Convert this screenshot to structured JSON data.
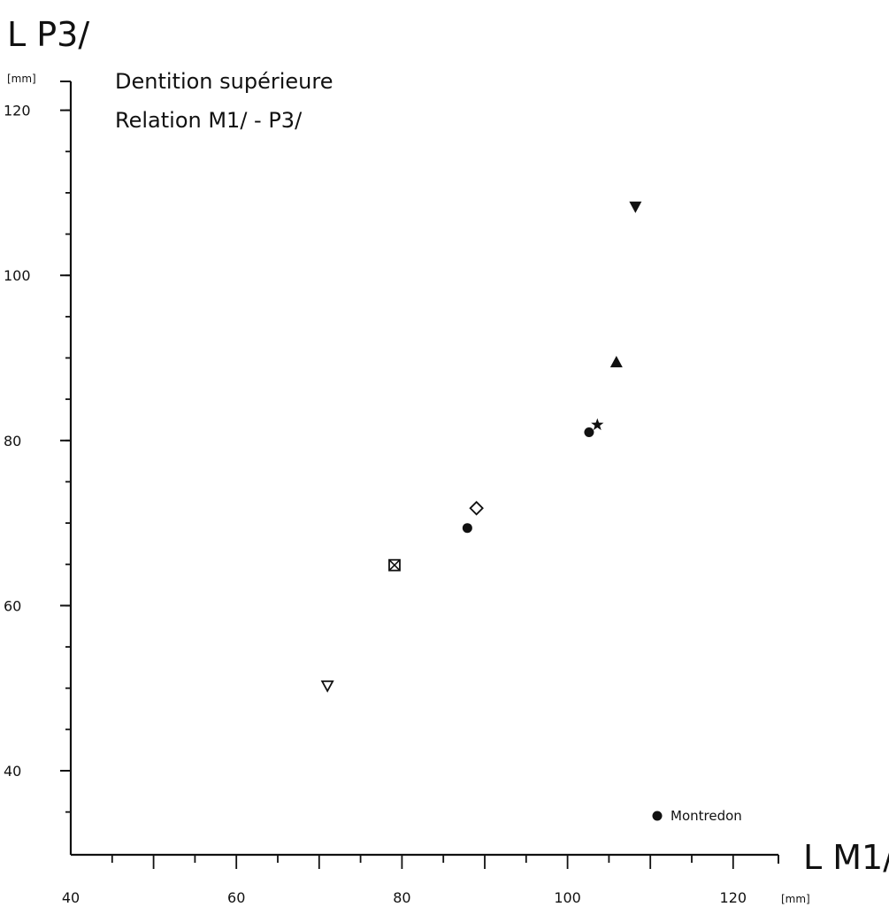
{
  "chart_data": {
    "type": "scatter",
    "title": "Dentition supérieure",
    "subtitle": "Relation  M1/ - P3/",
    "ylabel": "L P3/",
    "xlabel": "L M1/",
    "y_unit": "[mm]",
    "x_unit": "[mm]",
    "xlim": [
      40,
      125
    ],
    "ylim": [
      30,
      125
    ],
    "x_ticks": [
      40,
      60,
      80,
      100,
      120
    ],
    "y_ticks": [
      40,
      60,
      80,
      100,
      120
    ],
    "x_tick_labels": [
      "40",
      "60",
      "80",
      "100",
      "120"
    ],
    "y_tick_labels": [
      "40",
      "60",
      "80",
      "100",
      "120"
    ],
    "x_minor_step": 5,
    "y_minor_step": 5,
    "grid": false,
    "points": [
      {
        "x": 71.0,
        "y": 50.3,
        "marker": "triangle-down-open"
      },
      {
        "x": 79.1,
        "y": 64.9,
        "marker": "square-x"
      },
      {
        "x": 87.9,
        "y": 69.4,
        "marker": "circle-filled"
      },
      {
        "x": 89.0,
        "y": 71.8,
        "marker": "diamond-open"
      },
      {
        "x": 102.6,
        "y": 81.0,
        "marker": "circle-filled"
      },
      {
        "x": 103.6,
        "y": 81.9,
        "marker": "star"
      },
      {
        "x": 105.9,
        "y": 89.5,
        "marker": "triangle-up-filled"
      },
      {
        "x": 108.2,
        "y": 108.3,
        "marker": "triangle-down-filled"
      }
    ],
    "legend": [
      {
        "marker": "circle-filled",
        "label": "Montredon"
      }
    ],
    "legend_position": "bottom-right"
  }
}
